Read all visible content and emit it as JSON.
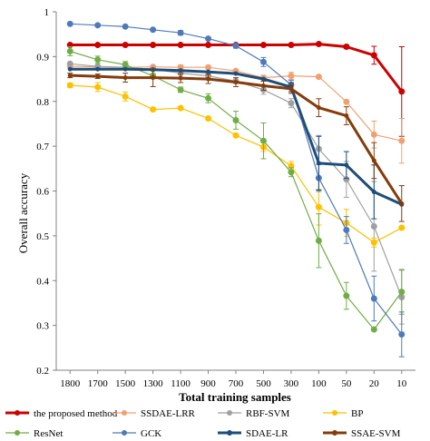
{
  "chart_data": {
    "type": "line",
    "xlabel": "Total training samples",
    "ylabel": "Overall accuracy",
    "ylim": [
      0.2,
      1.0
    ],
    "y_ticks": [
      "0.2",
      "0.3",
      "0.4",
      "0.5",
      "0.6",
      "0.7",
      "0.8",
      "0.9",
      "1"
    ],
    "categories": [
      "1800",
      "1700",
      "1500",
      "1300",
      "1100",
      "900",
      "700",
      "500",
      "300",
      "100",
      "50",
      "20",
      "10"
    ],
    "grid": false,
    "legend_position": "bottom",
    "series": [
      {
        "name": "the proposed method",
        "color": "#cc0000",
        "marker": "circle",
        "width": 3,
        "values": [
          0.926,
          0.926,
          0.926,
          0.926,
          0.926,
          0.926,
          0.926,
          0.926,
          0.926,
          0.928,
          0.922,
          0.903,
          0.822
        ],
        "errors": [
          0,
          0,
          0,
          0,
          0,
          0,
          0,
          0,
          0,
          0.002,
          0.004,
          0.02,
          0.1
        ]
      },
      {
        "name": "SSDAE-LRR",
        "color": "#f0a070",
        "marker": "circle",
        "width": 1.2,
        "values": [
          0.878,
          0.877,
          0.876,
          0.877,
          0.876,
          0.876,
          0.868,
          0.853,
          0.857,
          0.855,
          0.799,
          0.726,
          0.712
        ],
        "errors": [
          0,
          0,
          0,
          0,
          0.005,
          0,
          0,
          0.005,
          0.008,
          0,
          0,
          0.03,
          0.05
        ]
      },
      {
        "name": "RBF-SVM",
        "color": "#a0a0a0",
        "marker": "circle",
        "width": 1.2,
        "values": [
          0.884,
          0.878,
          0.876,
          0.872,
          0.863,
          0.857,
          0.845,
          0.826,
          0.796,
          0.694,
          0.626,
          0.521,
          0.363
        ],
        "errors": [
          0,
          0,
          0,
          0,
          0,
          0,
          0.005,
          0.01,
          0.01,
          0.03,
          0.04,
          0.1,
          0.06
        ]
      },
      {
        "name": "BP",
        "color": "#ffc000",
        "marker": "circle",
        "width": 1.2,
        "values": [
          0.836,
          0.832,
          0.811,
          0.782,
          0.785,
          0.762,
          0.724,
          0.698,
          0.656,
          0.564,
          0.529,
          0.485,
          0.518
        ],
        "errors": [
          0.005,
          0.01,
          0.01,
          0,
          0,
          0,
          0,
          0.01,
          0.01,
          0.04,
          0.03,
          0.01,
          0
        ]
      },
      {
        "name": "ResNet",
        "color": "#70ad47",
        "marker": "circle",
        "width": 1.2,
        "values": [
          0.912,
          0.893,
          0.882,
          0.857,
          0.826,
          0.807,
          0.758,
          0.712,
          0.642,
          0.489,
          0.366,
          0.291,
          0.375
        ],
        "errors": [
          0.01,
          0.008,
          0.007,
          0.005,
          0.006,
          0.01,
          0.02,
          0.04,
          0.01,
          0.06,
          0.03,
          0,
          0.05
        ]
      },
      {
        "name": "GCK",
        "color": "#4f7ab8",
        "marker": "circle",
        "width": 1.2,
        "values": [
          0.973,
          0.97,
          0.967,
          0.96,
          0.953,
          0.94,
          0.924,
          0.888,
          0.837,
          0.629,
          0.513,
          0.36,
          0.28
        ],
        "errors": [
          0,
          0,
          0,
          0,
          0.005,
          0,
          0.005,
          0.01,
          0.01,
          0.03,
          0.03,
          0.05,
          0.05
        ]
      },
      {
        "name": "SDAE-LR",
        "color": "#1f4e79",
        "marker": "none",
        "width": 3,
        "values": [
          0.872,
          0.872,
          0.872,
          0.871,
          0.869,
          0.866,
          0.862,
          0.85,
          0.832,
          0.662,
          0.658,
          0.598,
          0.57
        ],
        "errors": [
          0,
          0,
          0,
          0,
          0,
          0,
          0,
          0,
          0.01,
          0.06,
          0.03,
          0.06,
          0
        ]
      },
      {
        "name": "SSAE-SVM",
        "color": "#843c0c",
        "marker": "none",
        "width": 3,
        "values": [
          0.858,
          0.856,
          0.853,
          0.853,
          0.852,
          0.85,
          0.843,
          0.835,
          0.828,
          0.786,
          0.768,
          0.668,
          0.572
        ],
        "errors": [
          0.005,
          0.005,
          0.01,
          0.02,
          0.01,
          0.01,
          0.01,
          0.01,
          0.01,
          0.02,
          0.02,
          0.04,
          0.04
        ]
      }
    ]
  }
}
